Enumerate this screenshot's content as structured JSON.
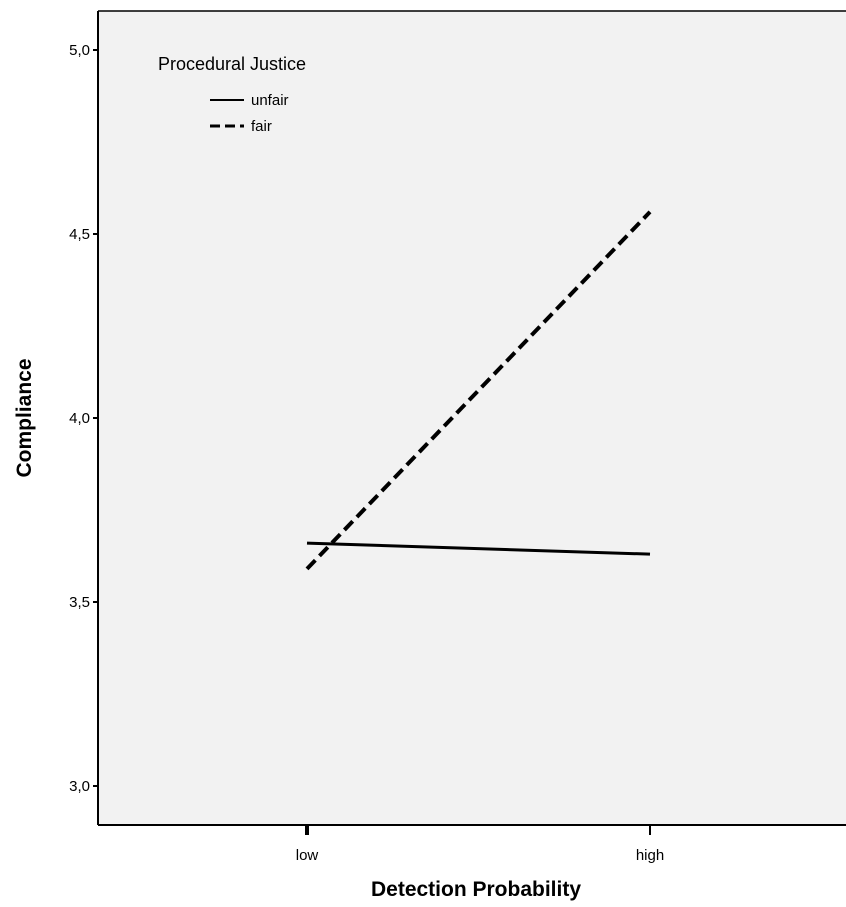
{
  "chart_data": {
    "type": "line",
    "title": "",
    "xlabel": "Detection Probability",
    "ylabel": "Compliance",
    "categories": [
      "low",
      "high"
    ],
    "ylim": [
      2.9,
      5.05
    ],
    "yticks": [
      3.0,
      3.5,
      4.0,
      4.5,
      5.0
    ],
    "ytick_labels": [
      "3,0",
      "3,5",
      "4,0",
      "4,5",
      "5,0"
    ],
    "grid": false,
    "plot_background": "#f2f2f2",
    "legend": {
      "title": "Procedural Justice",
      "position": "top-left"
    },
    "series": [
      {
        "name": "unfair",
        "style": "solid",
        "color": "#000000",
        "values": [
          3.66,
          3.63
        ]
      },
      {
        "name": "fair",
        "style": "dashed",
        "color": "#000000",
        "values": [
          3.59,
          4.56
        ]
      }
    ]
  }
}
